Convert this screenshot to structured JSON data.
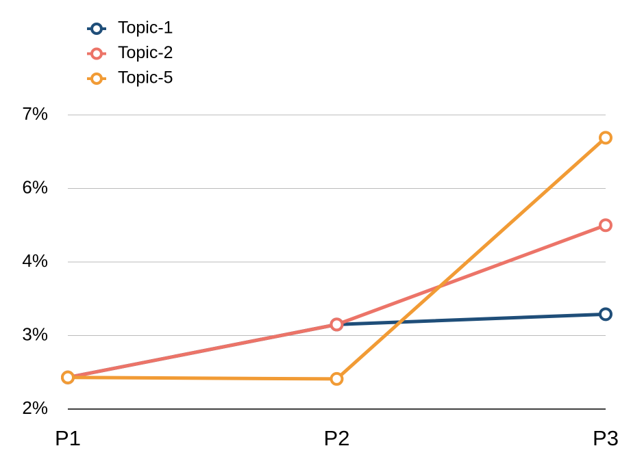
{
  "chart_data": {
    "type": "line",
    "categories": [
      "P1",
      "P2",
      "P3"
    ],
    "series": [
      {
        "name": "Topic-1",
        "color": "#1f4e79",
        "values": [
          2.43,
          3.15,
          3.29
        ]
      },
      {
        "name": "Topic-2",
        "color": "#ec7468",
        "values": [
          2.43,
          3.15,
          5.0
        ]
      },
      {
        "name": "Topic-5",
        "color": "#f19b35",
        "values": [
          2.43,
          2.41,
          6.69
        ]
      }
    ],
    "ylim": [
      2,
      7
    ],
    "yticks": [
      {
        "value": 2,
        "label": "2%"
      },
      {
        "value": 3,
        "label": "3%"
      },
      {
        "value": 4,
        "label": "4%"
      },
      {
        "value": 6,
        "label": "6%"
      },
      {
        "value": 7,
        "label": "7%"
      }
    ],
    "grid": true,
    "legend": "top-left"
  }
}
